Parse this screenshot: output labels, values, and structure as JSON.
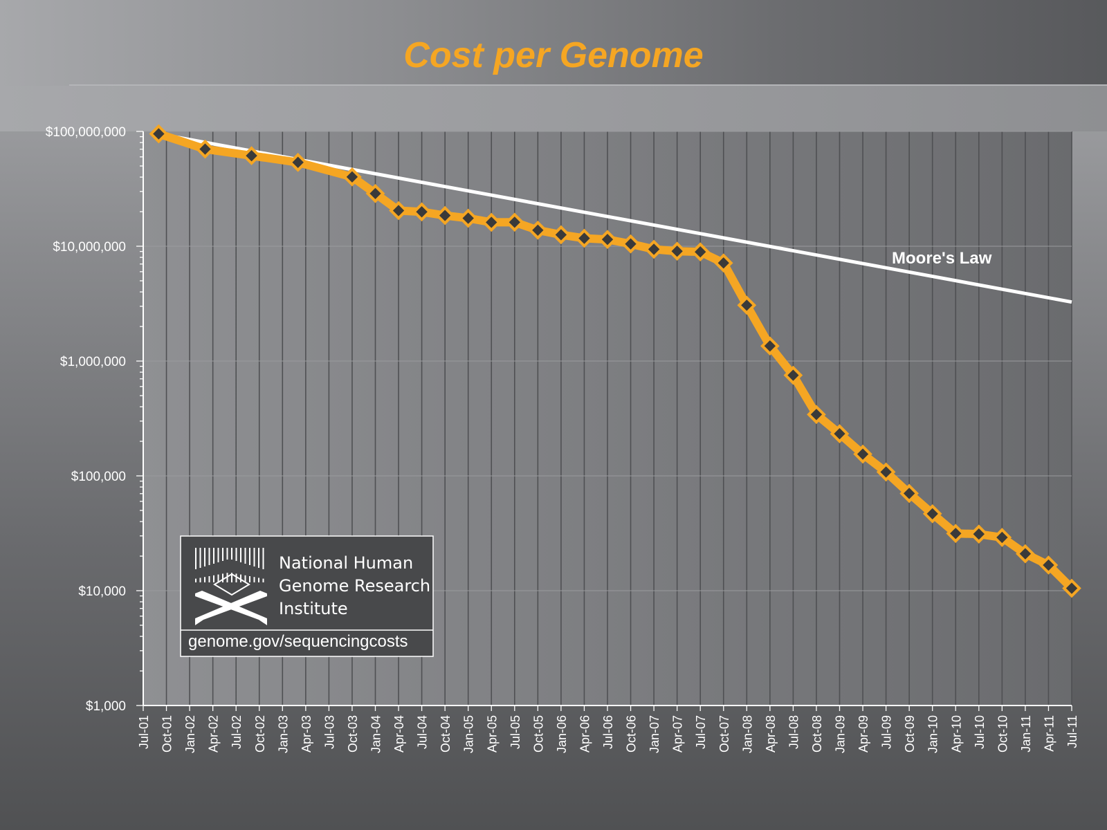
{
  "title": "Cost per Genome",
  "colors": {
    "title": "#f5a623",
    "series": "#f5a623",
    "marker": "#3a3a3a",
    "moore": "#ffffff",
    "axis_text": "#ffffff"
  },
  "logo": {
    "line1": "National Human",
    "line2": "Genome Research",
    "line3": "Institute",
    "url": "genome.gov/sequencingcosts"
  },
  "chart_data": {
    "type": "line",
    "title": "Cost per Genome",
    "y_scale": "log",
    "ylim": [
      1000,
      100000000
    ],
    "y_ticks": [
      1000,
      10000,
      100000,
      1000000,
      10000000,
      100000000
    ],
    "y_tick_labels": [
      "$1,000",
      "$10,000",
      "$100,000",
      "$1,000,000",
      "$10,000,000",
      "$100,000,000"
    ],
    "x_tick_labels": [
      "Jul-01",
      "Oct-01",
      "Jan-02",
      "Apr-02",
      "Jul-02",
      "Oct-02",
      "Jan-03",
      "Apr-03",
      "Jul-03",
      "Oct-03",
      "Jan-04",
      "Apr-04",
      "Jul-04",
      "Oct-04",
      "Jan-05",
      "Apr-05",
      "Jul-05",
      "Oct-05",
      "Jan-06",
      "Apr-06",
      "Jul-06",
      "Oct-06",
      "Jan-07",
      "Apr-07",
      "Jul-07",
      "Oct-07",
      "Jan-08",
      "Apr-08",
      "Jul-08",
      "Oct-08",
      "Jan-09",
      "Apr-09",
      "Jul-09",
      "Oct-09",
      "Jan-10",
      "Apr-10",
      "Jul-10",
      "Oct-10",
      "Jan-11",
      "Apr-11",
      "Jul-11"
    ],
    "grid": true,
    "series": [
      {
        "name": "",
        "x": [
          "Sep-01",
          "Mar-02",
          "Sep-02",
          "Mar-03",
          "Oct-03",
          "Jan-04",
          "Apr-04",
          "Jul-04",
          "Oct-04",
          "Jan-05",
          "Apr-05",
          "Jul-05",
          "Oct-05",
          "Jan-06",
          "Apr-06",
          "Jul-06",
          "Oct-06",
          "Jan-07",
          "Apr-07",
          "Jul-07",
          "Oct-07",
          "Jan-08",
          "Apr-08",
          "Jul-08",
          "Oct-08",
          "Jan-09",
          "Apr-09",
          "Jul-09",
          "Oct-09",
          "Jan-10",
          "Apr-10",
          "Jul-10",
          "Oct-10",
          "Jan-11",
          "Apr-11",
          "Jul-11"
        ],
        "values": [
          95263072,
          70175437,
          61448422,
          53751684,
          40157554,
          28780376,
          20442576,
          19934346,
          18519312,
          17534970,
          16159699,
          16180224,
          13801124,
          12585659,
          11732535,
          11455315,
          10474556,
          9408739,
          9047003,
          8927342,
          7147571,
          3063820,
          1352982,
          752080,
          342502,
          232735,
          154714,
          108065,
          70333,
          46774,
          31512,
          31125,
          29092,
          20963,
          16712,
          10497
        ]
      },
      {
        "name": "Moore's Law",
        "x": [
          "Sep-01",
          "Jul-11"
        ],
        "values": [
          95263072,
          3266072
        ]
      }
    ]
  }
}
